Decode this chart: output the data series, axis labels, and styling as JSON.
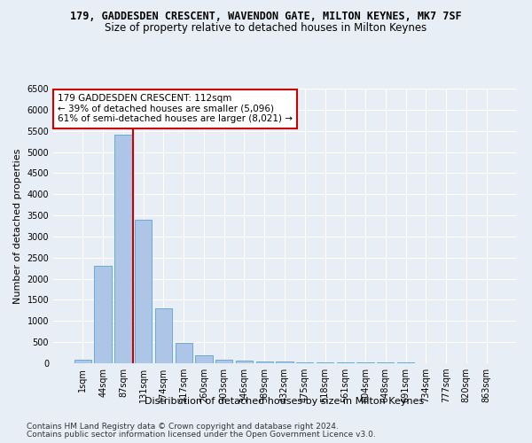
{
  "title": "179, GADDESDEN CRESCENT, WAVENDON GATE, MILTON KEYNES, MK7 7SF",
  "subtitle": "Size of property relative to detached houses in Milton Keynes",
  "xlabel": "Distribution of detached houses by size in Milton Keynes",
  "ylabel": "Number of detached properties",
  "footer_line1": "Contains HM Land Registry data © Crown copyright and database right 2024.",
  "footer_line2": "Contains public sector information licensed under the Open Government Licence v3.0.",
  "bin_labels": [
    "1sqm",
    "44sqm",
    "87sqm",
    "131sqm",
    "174sqm",
    "217sqm",
    "260sqm",
    "303sqm",
    "346sqm",
    "389sqm",
    "432sqm",
    "475sqm",
    "518sqm",
    "561sqm",
    "604sqm",
    "648sqm",
    "691sqm",
    "734sqm",
    "777sqm",
    "820sqm",
    "863sqm"
  ],
  "bin_values": [
    75,
    2300,
    5400,
    3400,
    1300,
    475,
    190,
    80,
    60,
    50,
    40,
    30,
    25,
    20,
    18,
    15,
    12,
    10,
    8,
    6,
    5
  ],
  "bar_color": "#adc6e8",
  "bar_edge_color": "#6aaad4",
  "vline_x": 2.5,
  "vline_color": "#cc0000",
  "annotation_text": "179 GADDESDEN CRESCENT: 112sqm\n← 39% of detached houses are smaller (5,096)\n61% of semi-detached houses are larger (8,021) →",
  "annotation_box_color": "#ffffff",
  "annotation_box_edge_color": "#cc0000",
  "ylim": [
    0,
    6500
  ],
  "background_color": "#e8eef5",
  "grid_color": "#ffffff",
  "title_fontsize": 8.5,
  "subtitle_fontsize": 8.5,
  "axis_label_fontsize": 8,
  "tick_fontsize": 7,
  "annotation_fontsize": 7.5,
  "footer_fontsize": 6.5
}
